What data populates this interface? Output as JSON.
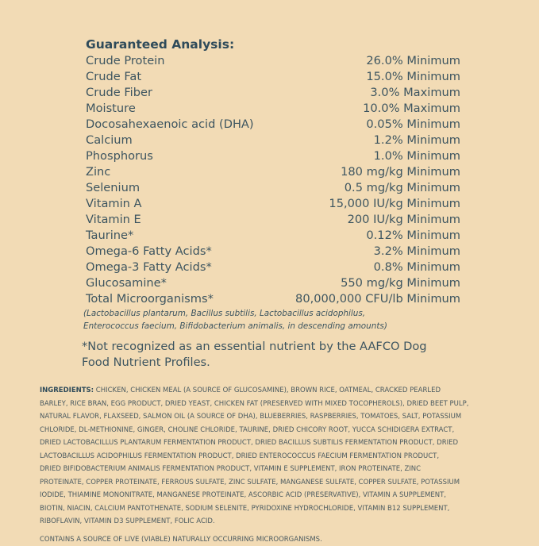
{
  "guaranteed_analysis": {
    "title": "Guaranteed Analysis:",
    "rows": [
      {
        "name": "Crude Protein",
        "value": "26.0% Minimum"
      },
      {
        "name": "Crude Fat",
        "value": "15.0% Minimum"
      },
      {
        "name": "Crude Fiber",
        "value": "3.0% Maximum"
      },
      {
        "name": "Moisture",
        "value": "10.0% Maximum"
      },
      {
        "name": "Docosahexaenoic acid (DHA)",
        "value": "0.05% Minimum"
      },
      {
        "name": "Calcium",
        "value": "1.2% Minimum"
      },
      {
        "name": "Phosphorus",
        "value": "1.0% Minimum"
      },
      {
        "name": "Zinc",
        "value": "180 mg/kg Minimum"
      },
      {
        "name": "Selenium",
        "value": "0.5 mg/kg Minimum"
      },
      {
        "name": "Vitamin A",
        "value": "15,000 IU/kg Minimum"
      },
      {
        "name": "Vitamin E",
        "value": "200 IU/kg Minimum"
      },
      {
        "name": "Taurine*",
        "value": "0.12% Minimum"
      },
      {
        "name": "Omega-6 Fatty Acids*",
        "value": "3.2% Minimum"
      },
      {
        "name": "Omega-3 Fatty Acids*",
        "value": "0.8% Minimum"
      },
      {
        "name": "Glucosamine*",
        "value": "550 mg/kg Minimum"
      },
      {
        "name": "Total Microorganisms*",
        "value": "80,000,000 CFU/lb Minimum"
      }
    ],
    "note_lines": [
      "(Lactobacillus plantarum, Bacillus subtilis, Lactobacillus acidophilus,",
      "Enterococcus faecium, Bifidobacterium animalis, in descending amounts)"
    ]
  },
  "aafco_note": [
    "*Not recognized as an essential nutrient by the AAFCO Dog",
    "Food Nutrient Profiles."
  ],
  "ingredients": {
    "label": "INGREDIENTS:",
    "lines": [
      " CHICKEN, CHICKEN MEAL (A SOURCE OF GLUCOSAMINE), BROWN RICE, OATMEAL, CRACKED PEARLED",
      "BARLEY, RICE BRAN, EGG PRODUCT, DRIED YEAST, CHICKEN FAT (PRESERVED WITH MIXED TOCOPHEROLS), DRIED BEET PULP,",
      "NATURAL FLAVOR, FLAXSEED, SALMON OIL (A SOURCE OF DHA), BLUEBERRIES, RASPBERRIES, TOMATOES, SALT, POTASSIUM",
      "CHLORIDE, DL-METHIONINE, GINGER, CHOLINE CHLORIDE, TAURINE, DRIED CHICORY ROOT, YUCCA SCHIDIGERA EXTRACT,",
      "DRIED LACTOBACILLUS PLANTARUM FERMENTATION PRODUCT, DRIED BACILLUS SUBTILIS FERMENTATION PRODUCT, DRIED",
      "LACTOBACILLUS ACIDOPHILUS FERMENTATION PRODUCT, DRIED ENTEROCOCCUS FAECIUM FERMENTATION PRODUCT,",
      "DRIED BIFIDOBACTERIUM ANIMALIS FERMENTATION PRODUCT, VITAMIN E SUPPLEMENT, IRON PROTEINATE, ZINC",
      "PROTEINATE, COPPER PROTEINATE, FERROUS SULFATE, ZINC SULFATE, MANGANESE SULFATE, COPPER SULFATE, POTASSIUM",
      "IODIDE, THIAMINE MONONITRATE, MANGANESE PROTEINATE, ASCORBIC ACID (PRESERVATIVE), VITAMIN A SUPPLEMENT,",
      "BIOTIN, NIACIN, CALCIUM PANTOTHENATE, SODIUM SELENITE, PYRIDOXINE HYDROCHLORIDE, VITAMIN B12 SUPPLEMENT,",
      "RIBOFLAVIN, VITAMIN D3 SUPPLEMENT, FOLIC ACID."
    ],
    "microorganisms": "CONTAINS A SOURCE OF LIVE (VIABLE) NATURALLY OCCURRING MICROORGANISMS."
  }
}
